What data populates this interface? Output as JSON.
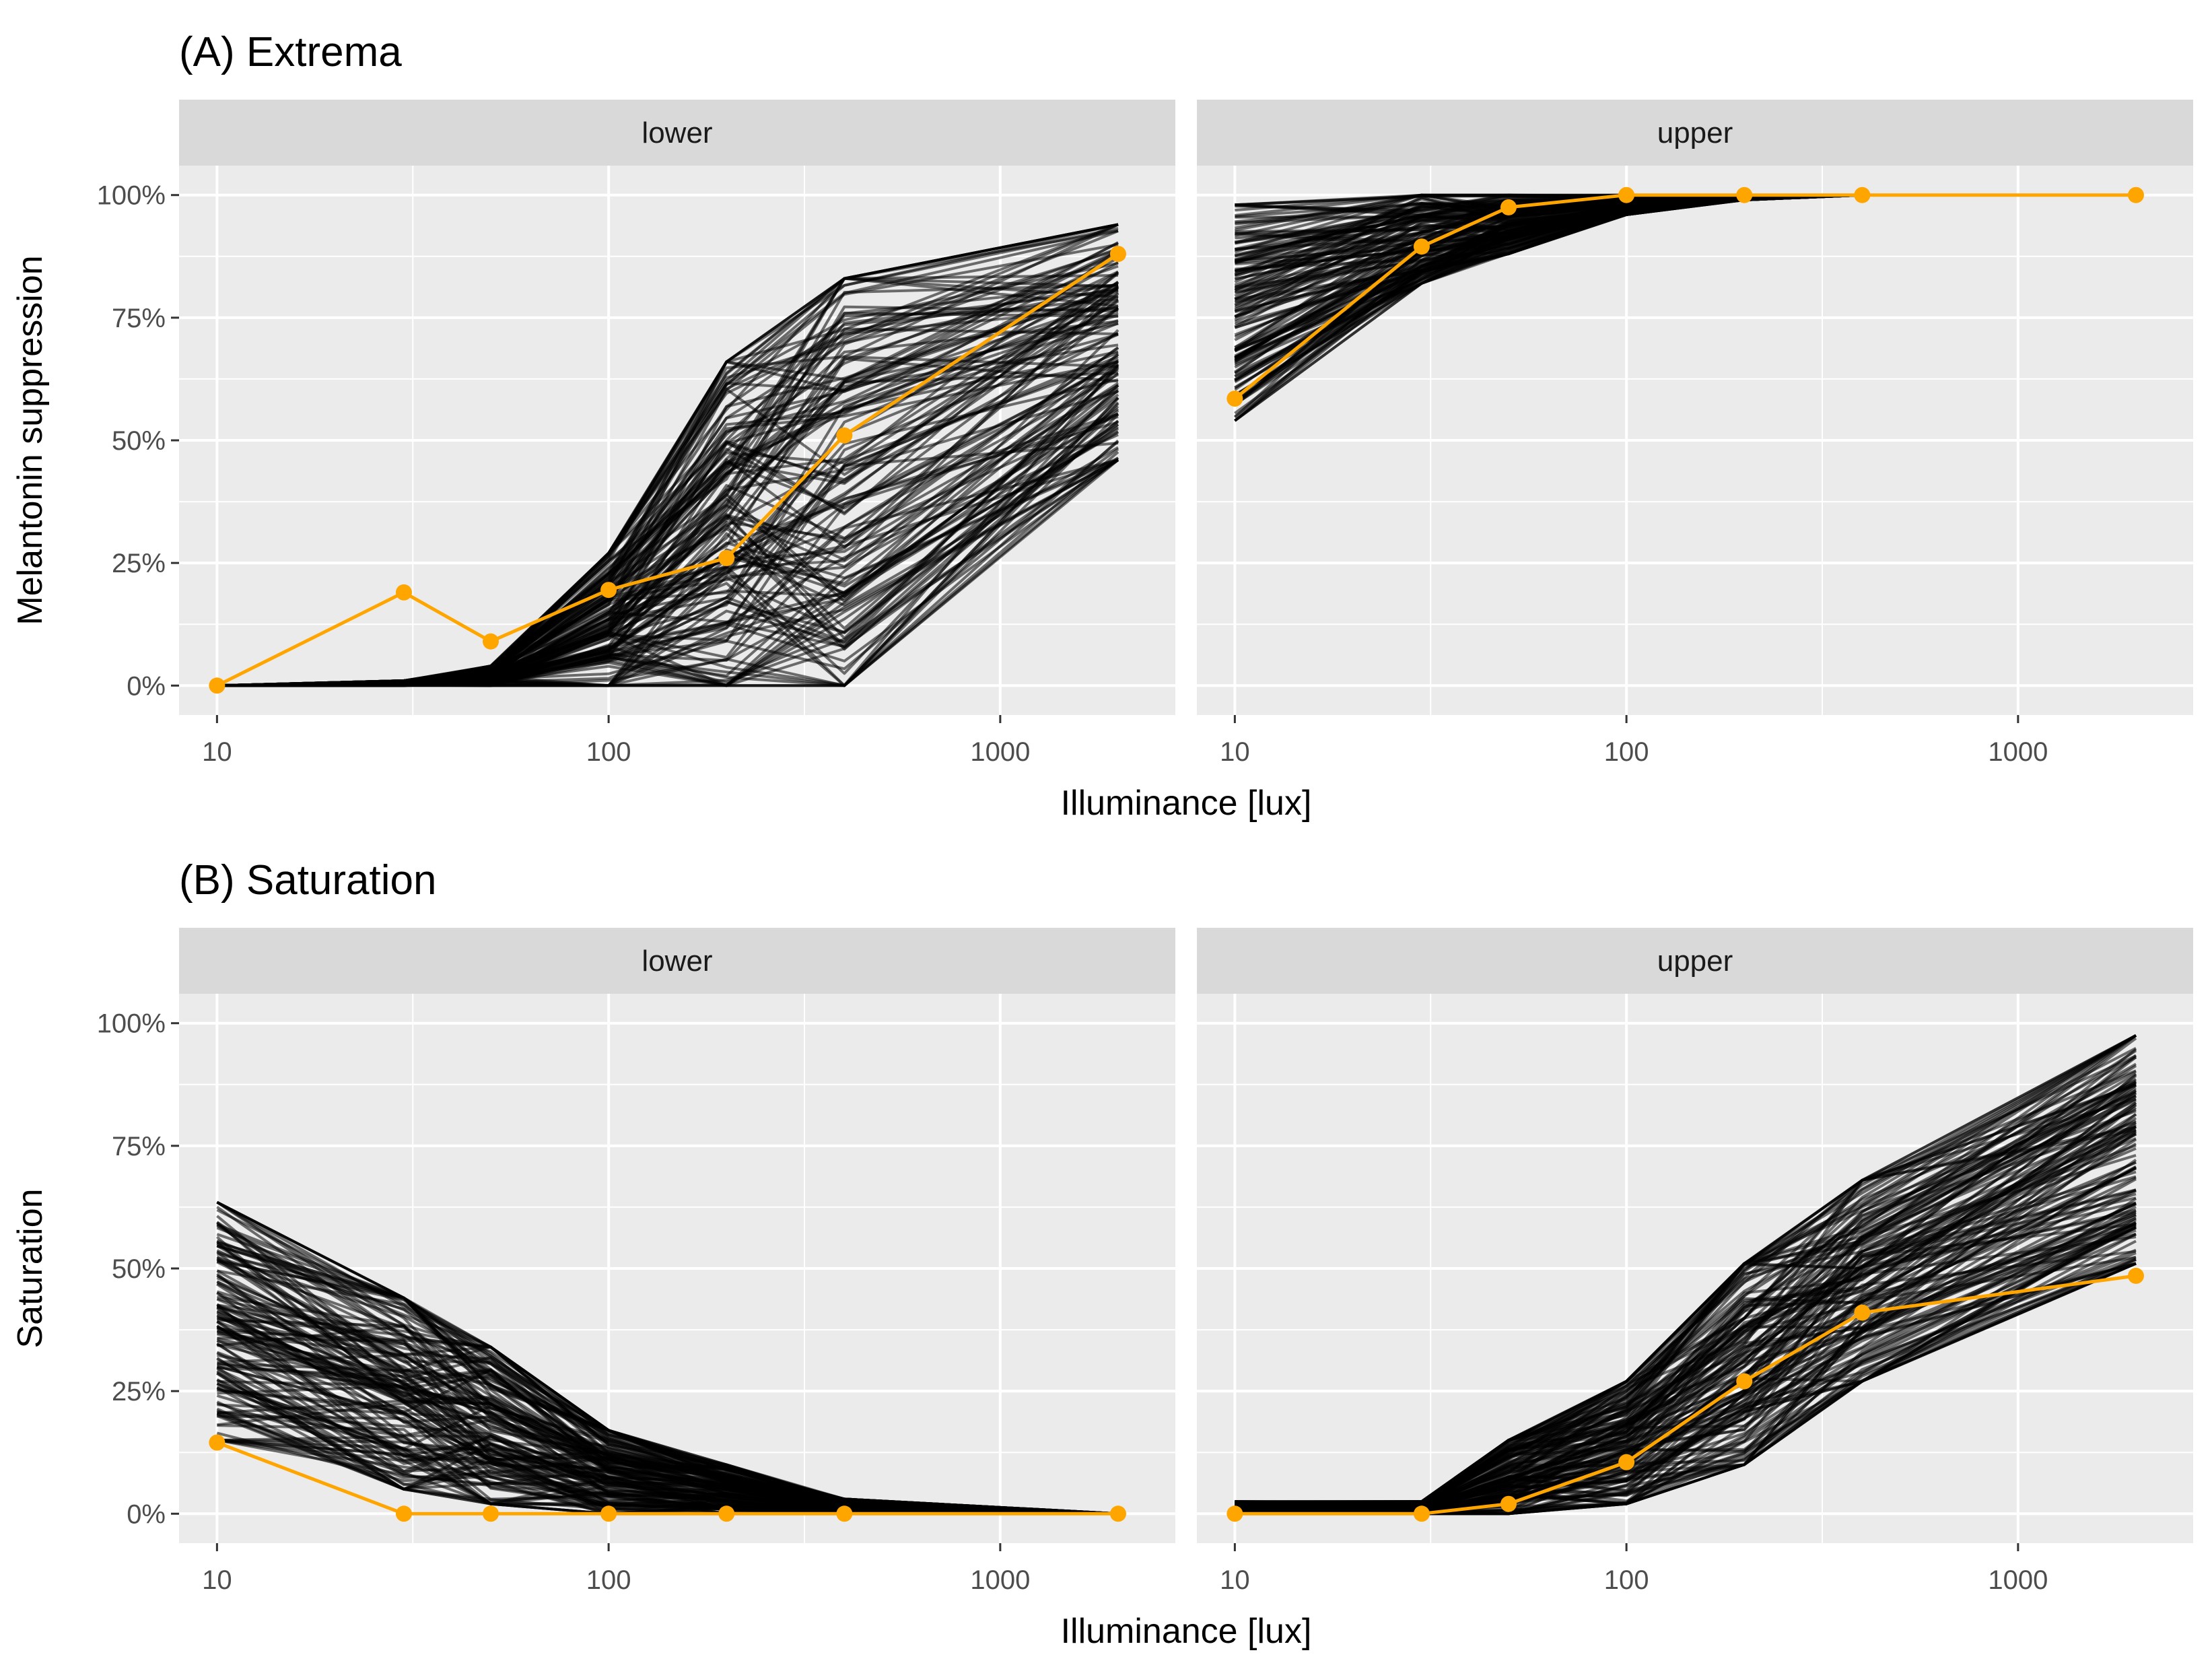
{
  "chart_data": [
    {
      "type": "line",
      "title": "(A) Extrema",
      "xlabel": "Illuminance [lux]",
      "ylabel": "Melantonin suppression",
      "xscale": "log10",
      "xlim": [
        8,
        2800
      ],
      "ylim": [
        -0.06,
        1.06
      ],
      "x_ticks": [
        10,
        100,
        1000
      ],
      "x_tick_labels": [
        "10",
        "100",
        "1000"
      ],
      "y_ticks": [
        0,
        0.25,
        0.5,
        0.75,
        1
      ],
      "y_tick_labels": [
        "0%",
        "25%",
        "50%",
        "75%",
        "100%"
      ],
      "x": [
        10,
        30,
        50,
        100,
        200,
        400,
        2000
      ],
      "grid": true,
      "highlight_color": "#ffa500",
      "background_line_color": "#000000",
      "panels": [
        {
          "strip": "lower",
          "highlight": [
            0,
            0.19,
            0.09,
            0.195,
            0.26,
            0.51,
            0.88
          ],
          "ensemble_low": [
            0,
            0,
            0,
            0,
            0,
            0,
            0.46
          ],
          "ensemble_high": [
            0,
            0.01,
            0.04,
            0.27,
            0.66,
            0.83,
            0.94
          ]
        },
        {
          "strip": "upper",
          "highlight": [
            0.585,
            0.895,
            0.975,
            1,
            1,
            1,
            1
          ],
          "ensemble_low": [
            0.54,
            0.82,
            0.88,
            0.96,
            0.99,
            1,
            1
          ],
          "ensemble_high": [
            0.98,
            1,
            1,
            1,
            1,
            1,
            1
          ]
        }
      ]
    },
    {
      "type": "line",
      "title": "(B) Saturation",
      "xlabel": "Illuminance [lux]",
      "ylabel": "Saturation",
      "xscale": "log10",
      "xlim": [
        8,
        2800
      ],
      "ylim": [
        -0.06,
        1.06
      ],
      "x_ticks": [
        10,
        100,
        1000
      ],
      "x_tick_labels": [
        "10",
        "100",
        "1000"
      ],
      "y_ticks": [
        0,
        0.25,
        0.5,
        0.75,
        1
      ],
      "y_tick_labels": [
        "0%",
        "25%",
        "50%",
        "75%",
        "100%"
      ],
      "x": [
        10,
        30,
        50,
        100,
        200,
        400,
        2000
      ],
      "grid": true,
      "highlight_color": "#ffa500",
      "background_line_color": "#000000",
      "panels": [
        {
          "strip": "lower",
          "highlight": [
            0.145,
            0,
            0,
            0,
            0,
            0,
            0
          ],
          "ensemble_low": [
            0.15,
            0.05,
            0.02,
            0,
            0,
            0,
            0
          ],
          "ensemble_high": [
            0.635,
            0.44,
            0.34,
            0.17,
            0.1,
            0.03,
            0
          ]
        },
        {
          "strip": "upper",
          "highlight": [
            0,
            0,
            0.02,
            0.105,
            0.27,
            0.41,
            0.485
          ],
          "ensemble_low": [
            0,
            0,
            0,
            0.02,
            0.1,
            0.27,
            0.51
          ],
          "ensemble_high": [
            0.025,
            0.025,
            0.15,
            0.27,
            0.51,
            0.68,
            0.975
          ]
        }
      ]
    }
  ]
}
